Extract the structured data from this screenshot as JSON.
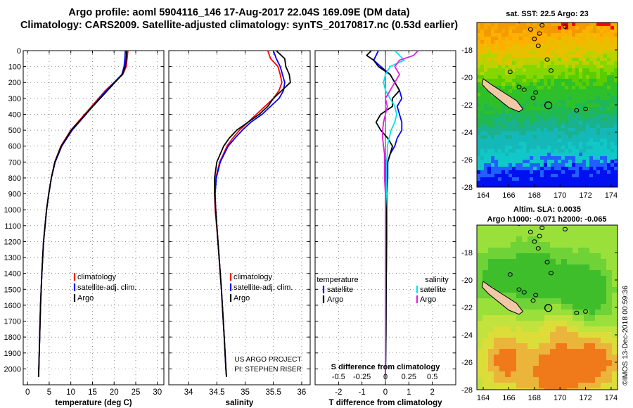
{
  "title_line1": "Argo profile: aoml 5904116_146 17-Aug-2017 22.04S 169.09E (DM data)",
  "title_line2": "Climatology: CARS2009. Satellite-adjusted climatology: synTS_20170817.nc (0.53d earlier)",
  "map_sst_title": "sat. SST: 22.5 Argo: 23",
  "map_sla_title1": "Altim. SLA: 0.0035",
  "map_sla_title2": "Argo h1000: -0.071 h2000: -0.065",
  "credit": "©IMOS 13-Dec-2018 00:59:36",
  "project_line1": "US ARGO PROJECT",
  "project_line2": "PI: STEPHEN RISER",
  "colors": {
    "climatology": "#ff0000",
    "satellite": "#0000ff",
    "argo": "#000000",
    "sat_salinity": "#00e5ee",
    "argo_salinity": "#e21fe2"
  },
  "chart_data": [
    {
      "type": "line",
      "xlabel": "temperature (deg C)",
      "ylabel": "",
      "xlim": [
        -1,
        31.5
      ],
      "ylim": [
        2100,
        0
      ],
      "xticks": [
        "0",
        "5",
        "10",
        "15",
        "20",
        "25",
        "30"
      ],
      "yticks": [
        "0",
        "100",
        "200",
        "300",
        "400",
        "500",
        "600",
        "700",
        "800",
        "900",
        "1000",
        "1100",
        "1200",
        "1300",
        "1400",
        "1500",
        "1600",
        "1700",
        "1800",
        "1900",
        "2000"
      ],
      "legend": [
        "climatology",
        "satellite-adj. clim.",
        "Argo"
      ],
      "y": [
        0,
        50,
        100,
        150,
        200,
        250,
        300,
        400,
        500,
        600,
        700,
        800,
        900,
        1000,
        1200,
        1400,
        1600,
        1800,
        2000,
        2050
      ],
      "series": [
        {
          "name": "climatology",
          "values": [
            23.2,
            23.0,
            22.8,
            22.0,
            20.0,
            18.0,
            16.4,
            13.2,
            10.0,
            7.7,
            6.3,
            5.5,
            4.9,
            4.4,
            3.7,
            3.3,
            3.0,
            2.8,
            2.6,
            2.55
          ]
        },
        {
          "name": "satellite-adj. clim.",
          "values": [
            22.6,
            22.5,
            22.3,
            21.8,
            20.0,
            18.3,
            16.6,
            13.5,
            10.3,
            7.9,
            6.4,
            5.5,
            4.9,
            4.4,
            3.7,
            3.3,
            3.0,
            2.8,
            2.6,
            2.55
          ]
        },
        {
          "name": "Argo",
          "values": [
            22.9,
            22.8,
            22.6,
            21.9,
            20.2,
            18.5,
            16.8,
            13.4,
            10.1,
            7.8,
            6.3,
            5.5,
            4.9,
            4.4,
            3.7,
            3.3,
            3.0,
            2.8,
            2.6,
            2.55
          ]
        }
      ]
    },
    {
      "type": "line",
      "xlabel": "salinity",
      "ylabel": "",
      "xlim": [
        33.65,
        36.15
      ],
      "ylim": [
        2100,
        0
      ],
      "xticks": [
        "34",
        "34.5",
        "35",
        "35.5",
        "36"
      ],
      "legend": [
        "climatology",
        "satellite-adj. clim.",
        "Argo"
      ],
      "y": [
        0,
        50,
        100,
        150,
        200,
        250,
        300,
        350,
        400,
        450,
        500,
        550,
        600,
        700,
        800,
        900,
        1000,
        1200,
        1500,
        1800,
        2000,
        2050
      ],
      "series": [
        {
          "name": "climatology",
          "values": [
            35.4,
            35.45,
            35.58,
            35.62,
            35.65,
            35.6,
            35.5,
            35.35,
            35.2,
            35.05,
            34.9,
            34.78,
            34.68,
            34.55,
            34.48,
            34.46,
            34.47,
            34.52,
            34.58,
            34.63,
            34.66,
            34.67
          ]
        },
        {
          "name": "satellite-adj. clim.",
          "values": [
            35.5,
            35.55,
            35.62,
            35.66,
            35.7,
            35.68,
            35.6,
            35.45,
            35.3,
            35.1,
            34.95,
            34.82,
            34.7,
            34.56,
            34.49,
            34.47,
            34.48,
            34.52,
            34.58,
            34.63,
            34.66,
            34.67
          ]
        },
        {
          "name": "Argo",
          "values": [
            35.55,
            35.7,
            35.72,
            35.78,
            35.8,
            35.65,
            35.5,
            35.4,
            35.25,
            35.05,
            34.85,
            34.72,
            34.62,
            34.5,
            34.46,
            34.46,
            34.48,
            34.52,
            34.58,
            34.63,
            34.66,
            34.67
          ]
        }
      ]
    },
    {
      "type": "line",
      "xlabel": "T difference from climatology",
      "xlabel_top": "S difference from climatology",
      "xlim": [
        -3,
        3
      ],
      "ylim": [
        2100,
        0
      ],
      "xticks": [
        "-2",
        "-1",
        "0",
        "1",
        "2"
      ],
      "xticks_s": [
        "-0.5",
        "-0.25",
        "0",
        "0.25",
        "0.5"
      ],
      "legend_temperature_title": "temperature",
      "legend_salinity_title": "salinity",
      "legend": [
        "satellite",
        "Argo"
      ],
      "y": [
        0,
        30,
        60,
        100,
        150,
        200,
        250,
        300,
        350,
        400,
        450,
        500,
        550,
        600,
        650,
        700,
        800,
        900,
        1000,
        1200,
        1500,
        1800,
        2050
      ],
      "series": [
        {
          "name": "satellite",
          "quantity": "temperature",
          "values": [
            -0.3,
            -0.4,
            -0.5,
            -0.2,
            0.2,
            0.4,
            0.6,
            0.7,
            0.5,
            0.6,
            0.7,
            0.7,
            0.5,
            0.4,
            0.2,
            0.1,
            0.1,
            0.05,
            0.05,
            0.05,
            0.03,
            0.02,
            0.0
          ]
        },
        {
          "name": "Argo",
          "quantity": "temperature",
          "values": [
            -0.6,
            -0.8,
            -0.5,
            -0.3,
            0.2,
            0.4,
            0.6,
            0.3,
            0.3,
            -0.2,
            -0.4,
            -0.2,
            0.1,
            0.3,
            0.2,
            0.1,
            0.05,
            0.05,
            0.05,
            0.05,
            0.03,
            0.02,
            0.0
          ]
        },
        {
          "name": "satellite",
          "quantity": "salinity",
          "values": [
            0.1,
            0.15,
            0.2,
            0.05,
            0.0,
            -0.02,
            0.0,
            0.05,
            0.1,
            0.12,
            0.1,
            0.06,
            0.04,
            0.02,
            0.02,
            0.01,
            0.01,
            0.01,
            0.0,
            0.0,
            0.0,
            0.0,
            0.0
          ]
        },
        {
          "name": "Argo",
          "quantity": "salinity",
          "values": [
            0.35,
            0.3,
            0.15,
            0.1,
            0.15,
            0.1,
            0.05,
            0.0,
            0.02,
            0.0,
            -0.02,
            -0.03,
            -0.03,
            -0.02,
            -0.01,
            -0.01,
            -0.01,
            0.0,
            0.0,
            0.0,
            0.0,
            0.0,
            0.0
          ]
        }
      ]
    },
    {
      "type": "heatmap",
      "title": "sat. SST: 22.5 Argo: 23",
      "xlim": [
        163.5,
        174.5
      ],
      "ylim": [
        -28,
        -16
      ],
      "xticks": [
        "164",
        "166",
        "168",
        "170",
        "172",
        "174"
      ],
      "yticks": [
        "-18",
        "-20",
        "-22",
        "-24",
        "-26",
        "-28"
      ],
      "profile_location": [
        169.09,
        -22.04
      ]
    },
    {
      "type": "heatmap",
      "title": "Altim. SLA: 0.0035",
      "xlim": [
        163.5,
        174.5
      ],
      "ylim": [
        -28,
        -16
      ],
      "xticks": [
        "164",
        "166",
        "168",
        "170",
        "172",
        "174"
      ],
      "yticks": [
        "-18",
        "-20",
        "-22",
        "-24",
        "-26",
        "-28"
      ],
      "profile_location": [
        169.09,
        -22.04
      ]
    }
  ]
}
